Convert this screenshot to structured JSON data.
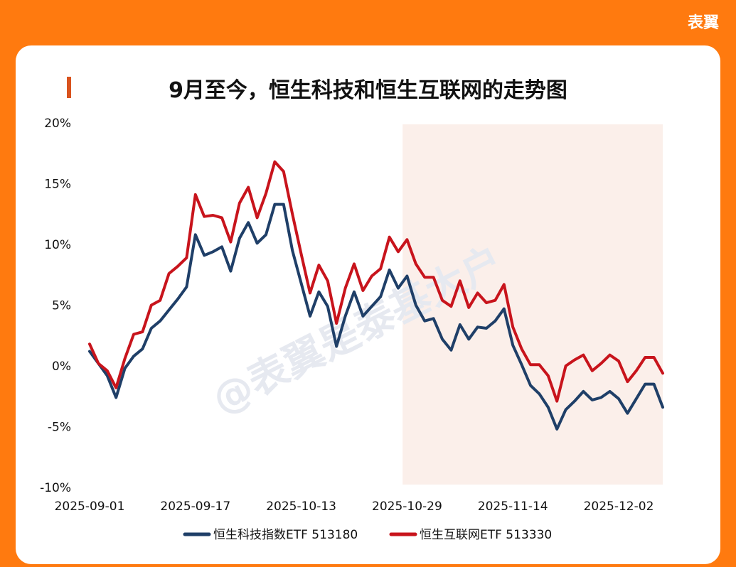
{
  "brand": "表翼",
  "watermark": "@表翼是泰基大户",
  "chart_data": {
    "type": "line",
    "title": "9月至今，恒生科技和恒生互联网的走势图",
    "ylim": [
      -10,
      20
    ],
    "y_ticks": [
      20,
      15,
      10,
      5,
      0,
      -5,
      -10
    ],
    "y_tick_labels": [
      "20%",
      "15%",
      "10%",
      "5%",
      "0%",
      "-5%",
      "-10%"
    ],
    "x_tick_labels": [
      "2025-09-01",
      "2025-09-17",
      "2025-10-13",
      "2025-10-29",
      "2025-11-14",
      "2025-12-02"
    ],
    "x_tick_index": [
      0,
      12,
      24,
      36,
      48,
      60
    ],
    "highlight_range_index": [
      35.5,
      65
    ],
    "legend_position": "bottom-center",
    "series": [
      {
        "name": "恒生科技指数ETF 513180",
        "color": "#1F3F68",
        "values": [
          1.2,
          0.2,
          -0.8,
          -2.6,
          -0.2,
          0.8,
          1.4,
          3.1,
          3.7,
          4.6,
          5.5,
          6.5,
          10.8,
          9.1,
          9.4,
          9.8,
          7.8,
          10.5,
          11.8,
          10.1,
          10.8,
          13.3,
          13.3,
          9.5,
          6.8,
          4.1,
          6.1,
          4.9,
          1.6,
          4.1,
          6.1,
          4.1,
          4.9,
          5.7,
          7.9,
          6.4,
          7.4,
          5.0,
          3.7,
          3.9,
          2.2,
          1.3,
          3.4,
          2.2,
          3.2,
          3.1,
          3.7,
          4.7,
          1.7,
          0.1,
          -1.6,
          -2.3,
          -3.4,
          -5.2,
          -3.6,
          -2.9,
          -2.1,
          -2.8,
          -2.6,
          -2.1,
          -2.7,
          -3.9,
          -2.7,
          -1.5,
          -1.5,
          -3.4
        ]
      },
      {
        "name": "恒生互联网ETF 513330",
        "color": "#C8141C",
        "values": [
          1.8,
          0.2,
          -0.4,
          -1.8,
          0.6,
          2.6,
          2.8,
          5.0,
          5.4,
          7.6,
          8.2,
          8.9,
          14.1,
          12.3,
          12.4,
          12.2,
          10.2,
          13.4,
          14.7,
          12.2,
          14.2,
          16.8,
          16.0,
          12.5,
          9.2,
          6.0,
          8.3,
          7.0,
          3.5,
          6.4,
          8.4,
          6.2,
          7.4,
          8.0,
          10.6,
          9.4,
          10.4,
          8.4,
          7.3,
          7.3,
          5.4,
          4.9,
          7.0,
          4.8,
          6.0,
          5.2,
          5.4,
          6.7,
          3.2,
          1.4,
          0.1,
          0.1,
          -0.8,
          -2.9,
          0.0,
          0.5,
          0.9,
          -0.4,
          0.2,
          0.9,
          0.4,
          -1.3,
          -0.4,
          0.7,
          0.7,
          -0.6
        ]
      }
    ]
  }
}
